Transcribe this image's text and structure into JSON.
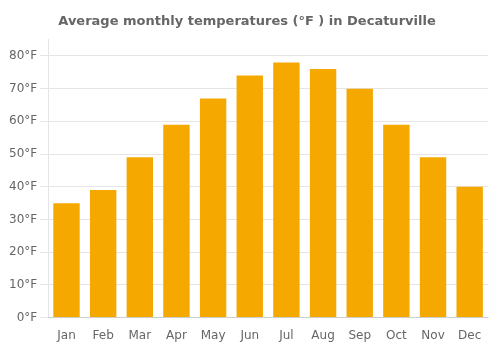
{
  "chart_data": {
    "type": "bar",
    "title": "Average monthly temperatures (°F ) in Decaturville",
    "categories": [
      "Jan",
      "Feb",
      "Mar",
      "Apr",
      "May",
      "Jun",
      "Jul",
      "Aug",
      "Sep",
      "Oct",
      "Nov",
      "Dec"
    ],
    "values": [
      35,
      39,
      49,
      59,
      67,
      74,
      78,
      76,
      70,
      59,
      49,
      40
    ],
    "color": "#F5A800",
    "ylim": [
      0,
      85
    ],
    "yticks": [
      {
        "value": 0,
        "label": "0°F"
      },
      {
        "value": 10,
        "label": "10°F"
      },
      {
        "value": 20,
        "label": "20°F"
      },
      {
        "value": 30,
        "label": "30°F"
      },
      {
        "value": 40,
        "label": "40°F"
      },
      {
        "value": 50,
        "label": "50°F"
      },
      {
        "value": 60,
        "label": "60°F"
      },
      {
        "value": 70,
        "label": "70°F"
      },
      {
        "value": 80,
        "label": "80°F"
      }
    ],
    "grid": true
  }
}
